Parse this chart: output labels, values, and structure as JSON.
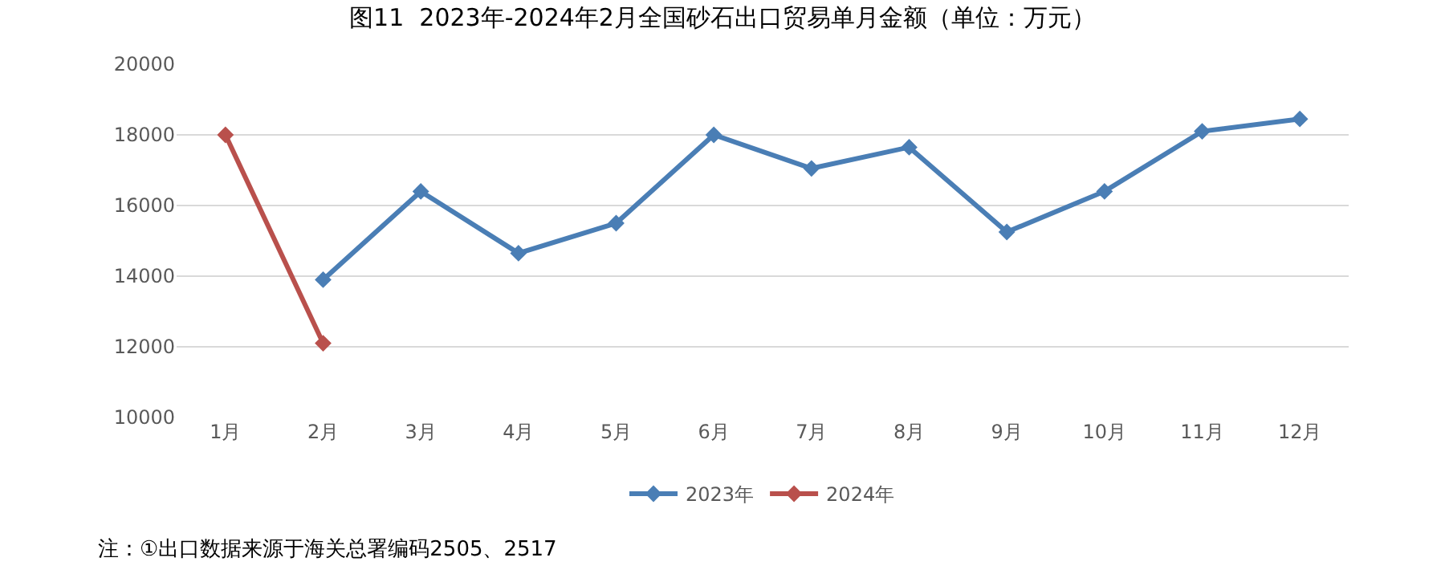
{
  "chart_data": {
    "type": "line",
    "title": "图11  2023年-2024年2月全国砂石出口贸易单月金额（单位：万元）",
    "categories": [
      "1月",
      "2月",
      "3月",
      "4月",
      "5月",
      "6月",
      "7月",
      "8月",
      "9月",
      "10月",
      "11月",
      "12月"
    ],
    "series": [
      {
        "name": "2023年",
        "color": "#4a7eb5",
        "values": [
          null,
          13900,
          16400,
          14650,
          15500,
          18000,
          17050,
          17650,
          15250,
          16400,
          18100,
          18450
        ]
      },
      {
        "name": "2024年",
        "color": "#b9504c",
        "values": [
          18000,
          12100,
          null,
          null,
          null,
          null,
          null,
          null,
          null,
          null,
          null,
          null
        ]
      }
    ],
    "ylim": [
      10000,
      20000
    ],
    "yticks": [
      10000,
      12000,
      14000,
      16000,
      18000,
      20000
    ],
    "grid": "y",
    "legend": "bottom",
    "marker": "diamond",
    "line_style": "solid",
    "annotations": [
      "注：①出口数据来源于海关总署编码2505、2517"
    ]
  }
}
